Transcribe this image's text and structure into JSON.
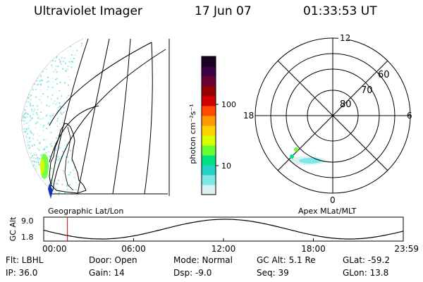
{
  "header": {
    "title": "Ultraviolet Imager",
    "date": "17 Jun 07",
    "time": "01:33:53 UT"
  },
  "colorbar": {
    "unit_label": "photon cm⁻²s⁻¹",
    "ticks": [
      "100",
      "10"
    ],
    "colors": [
      "#1a0022",
      "#3d0042",
      "#6a0030",
      "#9a0000",
      "#d00000",
      "#ff4a00",
      "#ff9a00",
      "#ffd200",
      "#d6ff00",
      "#66ff33",
      "#00e080",
      "#25d2c8",
      "#7ee8e8",
      "#d8f2f2"
    ]
  },
  "geo_panel": {
    "label": "Geographic Lat/Lon"
  },
  "polar_panel": {
    "label": "Apex MLat/MLT",
    "lat_labels": [
      "60",
      "70",
      "80"
    ],
    "mlt_labels": {
      "top": "12",
      "bottom": "0",
      "left": "18",
      "right": "6"
    }
  },
  "altitude_plot": {
    "ylabel": "GC Alt",
    "ymax": "9.0",
    "ymin": "1.8",
    "x_ticks": [
      "00:00",
      "06:00",
      "12:00",
      "18:00",
      "23:59"
    ],
    "current_time_fraction": 0.066,
    "marker_color": "#cc0000"
  },
  "info": {
    "flt": "Flt: LBHL",
    "ip": "IP: 36.0",
    "door": "Door: Open",
    "gain": "Gain: 14",
    "mode": "Mode: Normal",
    "dsp": "Dsp:    -9.0",
    "gcalt": "GC Alt: 5.1 Re",
    "seq": "Seq: 39",
    "glat": "GLat: -59.2",
    "glon": "GLon:  13.8"
  }
}
